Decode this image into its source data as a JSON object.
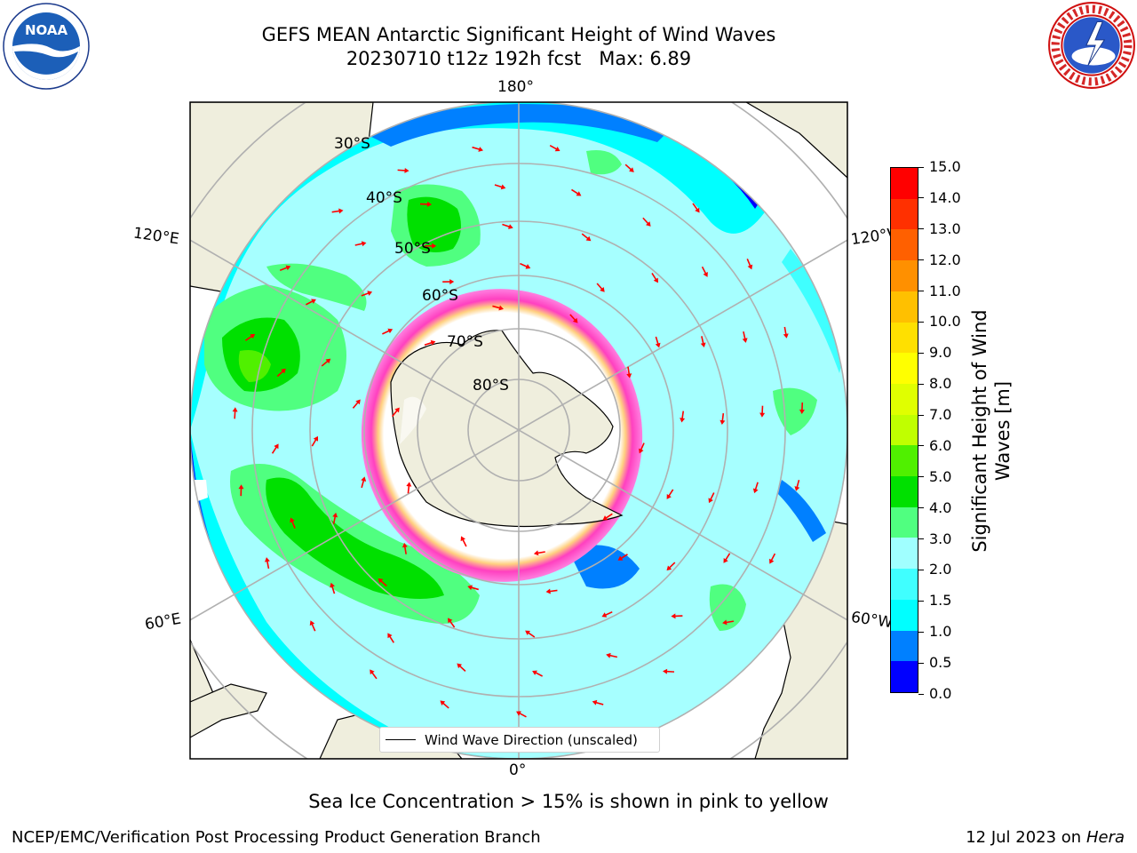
{
  "title": {
    "line1": "GEFS MEAN Antarctic Significant Height of Wind Waves",
    "line2": "20230710 t12z 192h fcst   Max: 6.89"
  },
  "logos": {
    "left": "NOAA",
    "right": "NATIONAL WEATHER SERVICE"
  },
  "map": {
    "lon_labels": {
      "top": "180°",
      "bottom": "0°",
      "upper_left": "120°E",
      "lower_left": "60°E",
      "upper_right": "120°W",
      "lower_right": "60°W"
    },
    "lat_labels": [
      "30°S",
      "40°S",
      "50°S",
      "60°S",
      "70°S",
      "80°S"
    ],
    "colors": {
      "land": "#efeedd",
      "ocean_calm": "#a6ffff",
      "sea_ice_edge": "#ff40c0",
      "arrow": "#ff0000"
    }
  },
  "colorbar": {
    "label": "Significant Height of Wind Waves [m]",
    "ticks": [
      "0.0",
      "0.5",
      "1.0",
      "1.5",
      "2.0",
      "3.0",
      "4.0",
      "5.0",
      "6.0",
      "7.0",
      "8.0",
      "9.0",
      "10.0",
      "11.0",
      "12.0",
      "13.0",
      "14.0",
      "15.0"
    ],
    "colors": [
      "#0000ff",
      "#0080ff",
      "#00ffff",
      "#40ffff",
      "#a0ffff",
      "#50ff80",
      "#00e000",
      "#50f000",
      "#c0ff00",
      "#e0ff00",
      "#ffff00",
      "#ffe000",
      "#ffc000",
      "#ff9000",
      "#ff6000",
      "#ff3000",
      "#ff0000"
    ]
  },
  "legend": {
    "label": "Wind Wave Direction (unscaled)"
  },
  "footer": {
    "caption": "Sea Ice Concentration > 15% is shown in pink to yellow",
    "left": "NCEP/EMC/Verification Post Processing Product Generation Branch",
    "right_date": "12 Jul 2023 on",
    "right_host": "Hera"
  }
}
